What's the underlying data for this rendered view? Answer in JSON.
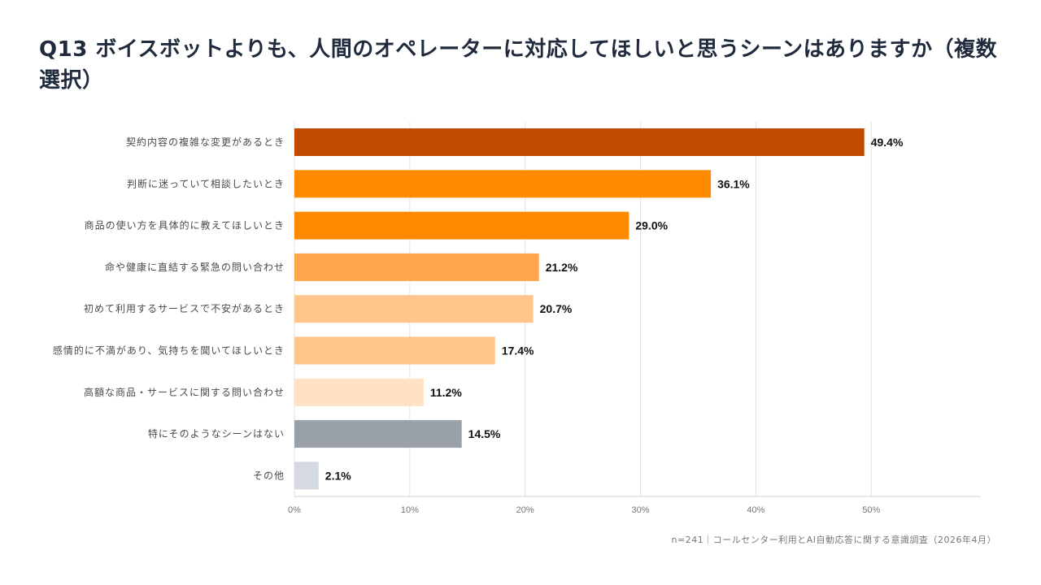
{
  "title": "Q13 ボイスボットよりも、人間のオペレーターに対応してほしいと思うシーンはありますか（複数選択）",
  "footnote": "n=241｜コールセンター利用とAI自動応答に関する意識調査（2026年4月）",
  "chart_data": {
    "type": "bar",
    "orientation": "horizontal",
    "title": "Q13 ボイスボットよりも、人間のオペレーターに対応してほしいと思うシーンはありますか（複数選択）",
    "categories": [
      "契約内容の複雑な変更があるとき",
      "判断に迷っていて相談したいとき",
      "商品の使い方を具体的に教えてほしいとき",
      "命や健康に直結する緊急の問い合わせ",
      "初めて利用するサービスで不安があるとき",
      "感情的に不満があり、気持ちを聞いてほしいとき",
      "高額な商品・サービスに関する問い合わせ",
      "特にそのようなシーンはない",
      "その他"
    ],
    "values": [
      49.4,
      36.1,
      29.0,
      21.2,
      20.7,
      17.4,
      11.2,
      14.5,
      2.1
    ],
    "value_labels": [
      "49.4%",
      "36.1%",
      "29.0%",
      "21.2%",
      "20.7%",
      "17.4%",
      "11.2%",
      "14.5%",
      "2.1%"
    ],
    "colors": [
      "#c24a00",
      "#ff8a00",
      "#ff8a00",
      "#ffa64d",
      "#ffc58a",
      "#ffc58a",
      "#ffe2c3",
      "#9aa0aa",
      "#d5d9e0"
    ],
    "x_ticks": [
      "0%",
      "10%",
      "20%",
      "30%",
      "40%",
      "50%"
    ],
    "xlim": [
      0,
      59.5
    ],
    "grid": true,
    "legend": "none"
  }
}
